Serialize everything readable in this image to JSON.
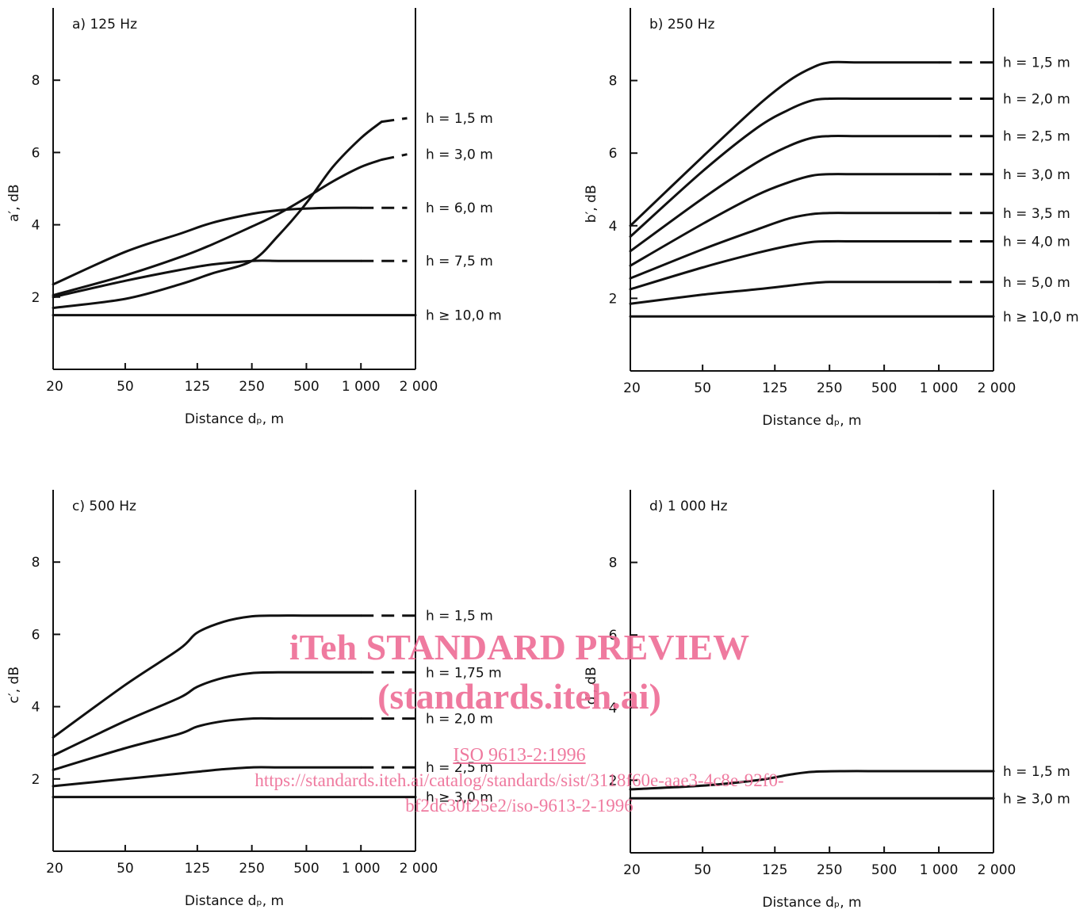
{
  "chart_data": [
    {
      "type": "line",
      "panel": "a",
      "title": "a)  125 Hz",
      "ylabel": "a′, dB",
      "xlabel": "Distance dₚ, m",
      "xscale": "log",
      "xlim": [
        20,
        2000
      ],
      "ylim": [
        0,
        10
      ],
      "xticks": [
        20,
        50,
        125,
        250,
        500,
        1000,
        2000
      ],
      "xtick_labels": [
        "20",
        "50",
        "125",
        "250",
        "500",
        "1 000",
        "2 000"
      ],
      "yticks": [
        2,
        4,
        6,
        8
      ],
      "ytick_labels": [
        "2",
        "4",
        "6",
        "8"
      ],
      "grid": false,
      "legend": "right-of-plot labels",
      "series": [
        {
          "name": "h = 1,5 m",
          "x": [
            20,
            50,
            100,
            150,
            250,
            350,
            500,
            700,
            1000,
            1300
          ],
          "y": [
            1.7,
            1.95,
            2.35,
            2.65,
            3.0,
            3.7,
            4.6,
            5.6,
            6.4,
            6.85
          ],
          "dash_x": [
            1300,
            1800
          ],
          "dash_y": [
            6.85,
            6.95
          ]
        },
        {
          "name": "h = 3,0 m",
          "x": [
            20,
            50,
            100,
            150,
            250,
            350,
            500,
            700,
            1000,
            1300
          ],
          "y": [
            2.05,
            2.6,
            3.1,
            3.45,
            3.95,
            4.3,
            4.75,
            5.2,
            5.6,
            5.8
          ],
          "dash_x": [
            1300,
            1800
          ],
          "dash_y": [
            5.8,
            5.95
          ]
        },
        {
          "name": "h = 6,0 m",
          "x": [
            20,
            50,
            100,
            150,
            250,
            350,
            500,
            700,
            1000
          ],
          "y": [
            2.35,
            3.25,
            3.75,
            4.05,
            4.3,
            4.4,
            4.45,
            4.47,
            4.47
          ],
          "dash_x": [
            1000,
            1800
          ],
          "dash_y": [
            4.47,
            4.47
          ]
        },
        {
          "name": "h = 7,5 m",
          "x": [
            20,
            50,
            100,
            150,
            250,
            350,
            500,
            700,
            1000
          ],
          "y": [
            2.0,
            2.45,
            2.75,
            2.9,
            3.0,
            3.0,
            3.0,
            3.0,
            3.0
          ],
          "dash_x": [
            1000,
            1800
          ],
          "dash_y": [
            3.0,
            3.0
          ]
        },
        {
          "name": "h ≥ 10,0 m",
          "x": [
            20,
            2000
          ],
          "y": [
            1.5,
            1.5
          ]
        }
      ]
    },
    {
      "type": "line",
      "panel": "b",
      "title": "b)  250 Hz",
      "ylabel": "b′, dB",
      "xlabel": "Distance dₚ, m",
      "xscale": "log",
      "xlim": [
        20,
        2000
      ],
      "ylim": [
        0,
        10
      ],
      "xticks": [
        20,
        50,
        125,
        250,
        500,
        1000,
        2000
      ],
      "xtick_labels": [
        "20",
        "50",
        "125",
        "250",
        "500",
        "1 000",
        "2 000"
      ],
      "yticks": [
        2,
        4,
        6,
        8
      ],
      "ytick_labels": [
        "2",
        "4",
        "6",
        "8"
      ],
      "grid": false,
      "legend": "right-of-plot labels",
      "series": [
        {
          "name": "h = 1,5 m",
          "x": [
            20,
            50,
            100,
            150,
            200,
            250,
            350,
            500,
            1000
          ],
          "y": [
            4.0,
            5.9,
            7.3,
            8.0,
            8.35,
            8.5,
            8.5,
            8.5,
            8.5
          ],
          "dash_x": [
            1000,
            2000
          ],
          "dash_y": [
            8.5,
            8.5
          ]
        },
        {
          "name": "h = 2,0 m",
          "x": [
            20,
            50,
            100,
            150,
            200,
            250,
            350,
            500,
            1000
          ],
          "y": [
            3.7,
            5.5,
            6.7,
            7.2,
            7.45,
            7.5,
            7.5,
            7.5,
            7.5
          ],
          "dash_x": [
            1000,
            2000
          ],
          "dash_y": [
            7.5,
            7.5
          ]
        },
        {
          "name": "h = 2,5 m",
          "x": [
            20,
            50,
            100,
            150,
            200,
            250,
            350,
            500,
            1000
          ],
          "y": [
            3.3,
            4.75,
            5.75,
            6.2,
            6.42,
            6.47,
            6.47,
            6.47,
            6.47
          ],
          "dash_x": [
            1000,
            2000
          ],
          "dash_y": [
            6.47,
            6.47
          ]
        },
        {
          "name": "h = 3,0 m",
          "x": [
            20,
            50,
            100,
            150,
            200,
            250,
            350,
            500,
            1000
          ],
          "y": [
            2.9,
            4.05,
            4.85,
            5.2,
            5.38,
            5.42,
            5.42,
            5.42,
            5.42
          ],
          "dash_x": [
            1000,
            2000
          ],
          "dash_y": [
            5.42,
            5.42
          ]
        },
        {
          "name": "h = 3,5 m",
          "x": [
            20,
            50,
            100,
            150,
            200,
            250,
            350,
            500,
            1000
          ],
          "y": [
            2.55,
            3.35,
            3.9,
            4.2,
            4.32,
            4.35,
            4.35,
            4.35,
            4.35
          ],
          "dash_x": [
            1000,
            2000
          ],
          "dash_y": [
            4.35,
            4.35
          ]
        },
        {
          "name": "h = 4,0 m",
          "x": [
            20,
            50,
            100,
            150,
            200,
            250,
            350,
            500,
            1000
          ],
          "y": [
            2.25,
            2.85,
            3.25,
            3.45,
            3.55,
            3.57,
            3.57,
            3.57,
            3.57
          ],
          "dash_x": [
            1000,
            2000
          ],
          "dash_y": [
            3.57,
            3.57
          ]
        },
        {
          "name": "h = 5,0 m",
          "x": [
            20,
            50,
            100,
            150,
            200,
            250,
            350,
            500,
            1000
          ],
          "y": [
            1.85,
            2.1,
            2.25,
            2.35,
            2.42,
            2.45,
            2.45,
            2.45,
            2.45
          ],
          "dash_x": [
            1000,
            2000
          ],
          "dash_y": [
            2.45,
            2.45
          ]
        },
        {
          "name": "h ≥ 10,0 m",
          "x": [
            20,
            2000
          ],
          "y": [
            1.5,
            1.5
          ]
        }
      ]
    },
    {
      "type": "line",
      "panel": "c",
      "title": "c)  500 Hz",
      "ylabel": "c′, dB",
      "xlabel": "Distance dₚ, m",
      "xscale": "log",
      "xlim": [
        20,
        2000
      ],
      "ylim": [
        0,
        10
      ],
      "xticks": [
        20,
        50,
        125,
        250,
        500,
        1000,
        2000
      ],
      "xtick_labels": [
        "20",
        "50",
        "125",
        "250",
        "500",
        "1 000",
        "2 000"
      ],
      "yticks": [
        2,
        4,
        6,
        8
      ],
      "ytick_labels": [
        "2",
        "4",
        "6",
        "8"
      ],
      "grid": false,
      "legend": "right-of-plot labels",
      "series": [
        {
          "name": "h = 1,5 m",
          "x": [
            20,
            50,
            100,
            125,
            175,
            250,
            350,
            500,
            1000
          ],
          "y": [
            3.15,
            4.6,
            5.6,
            6.05,
            6.35,
            6.5,
            6.52,
            6.52,
            6.52
          ],
          "dash_x": [
            1000,
            2000
          ],
          "dash_y": [
            6.52,
            6.52
          ]
        },
        {
          "name": "h = 1,75 m",
          "x": [
            20,
            50,
            100,
            125,
            175,
            250,
            350,
            500,
            1000
          ],
          "y": [
            2.65,
            3.6,
            4.25,
            4.55,
            4.8,
            4.93,
            4.95,
            4.95,
            4.95
          ],
          "dash_x": [
            1000,
            2000
          ],
          "dash_y": [
            4.95,
            4.95
          ]
        },
        {
          "name": "h = 2,0 m",
          "x": [
            20,
            50,
            100,
            125,
            175,
            250,
            350,
            500,
            1000
          ],
          "y": [
            2.25,
            2.85,
            3.25,
            3.45,
            3.6,
            3.67,
            3.67,
            3.67,
            3.67
          ],
          "dash_x": [
            1000,
            2000
          ],
          "dash_y": [
            3.67,
            3.67
          ]
        },
        {
          "name": "h = 2,5 m",
          "x": [
            20,
            50,
            100,
            125,
            175,
            250,
            350,
            500,
            1000
          ],
          "y": [
            1.8,
            2.0,
            2.15,
            2.2,
            2.27,
            2.32,
            2.32,
            2.32,
            2.32
          ],
          "dash_x": [
            1000,
            2000
          ],
          "dash_y": [
            2.32,
            2.32
          ]
        },
        {
          "name": "h ≥ 3,0 m",
          "x": [
            20,
            2000
          ],
          "y": [
            1.5,
            1.5
          ]
        }
      ]
    },
    {
      "type": "line",
      "panel": "d",
      "title": "d)  1 000 Hz",
      "ylabel": "d′, dB",
      "xlabel": "Distance dₚ, m",
      "xscale": "log",
      "xlim": [
        20,
        2000
      ],
      "ylim": [
        0,
        10
      ],
      "xticks": [
        20,
        50,
        125,
        250,
        500,
        1000,
        2000
      ],
      "xtick_labels": [
        "20",
        "50",
        "125",
        "250",
        "500",
        "1 000",
        "2 000"
      ],
      "yticks": [
        2,
        4,
        6,
        8
      ],
      "ytick_labels": [
        "2",
        "4",
        "6",
        "8"
      ],
      "grid": false,
      "legend": "right-of-plot labels",
      "series": [
        {
          "name": "h = 1,5 m",
          "x": [
            20,
            50,
            100,
            150,
            200,
            300,
            500,
            1000,
            2000
          ],
          "y": [
            1.75,
            1.85,
            2.0,
            2.15,
            2.23,
            2.25,
            2.25,
            2.25,
            2.25
          ]
        },
        {
          "name": "h ≥ 3,0 m",
          "x": [
            20,
            2000
          ],
          "y": [
            1.5,
            1.5
          ]
        }
      ]
    }
  ],
  "watermark": {
    "line1": "iTeh STANDARD PREVIEW",
    "line2": "(standards.iteh.ai)",
    "line3": "ISO 9613-2:1996",
    "line4": "https://standards.iteh.ai/catalog/standards/sist/3118f60e-aae3-4c8e-92f0-",
    "line5": "bf2dc30f25e2/iso-9613-2-1996",
    "color": "#ee6f97"
  }
}
